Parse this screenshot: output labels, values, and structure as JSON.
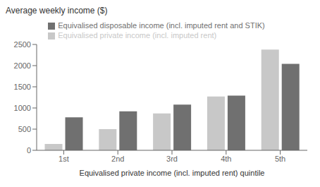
{
  "chart_data": {
    "type": "bar",
    "ylabel": "Average weekly income ($)",
    "xlabel": "Equivalised private income (incl. imputed rent) quintile",
    "categories": [
      "1st",
      "2nd",
      "3rd",
      "4th",
      "5th"
    ],
    "series": [
      {
        "name": "Equivalised private income (incl. imputed rent)",
        "color": "#c8c8c8",
        "values": [
          150,
          500,
          870,
          1270,
          2380
        ]
      },
      {
        "name": "Equivalised disposable income (incl. imputed rent and STIK)",
        "color": "#707070",
        "values": [
          780,
          920,
          1080,
          1290,
          2040
        ]
      }
    ],
    "ylim": [
      0,
      2500
    ],
    "yticks": [
      0,
      500,
      1000,
      1500,
      2000,
      2500
    ],
    "grid": false,
    "legend": "top"
  }
}
